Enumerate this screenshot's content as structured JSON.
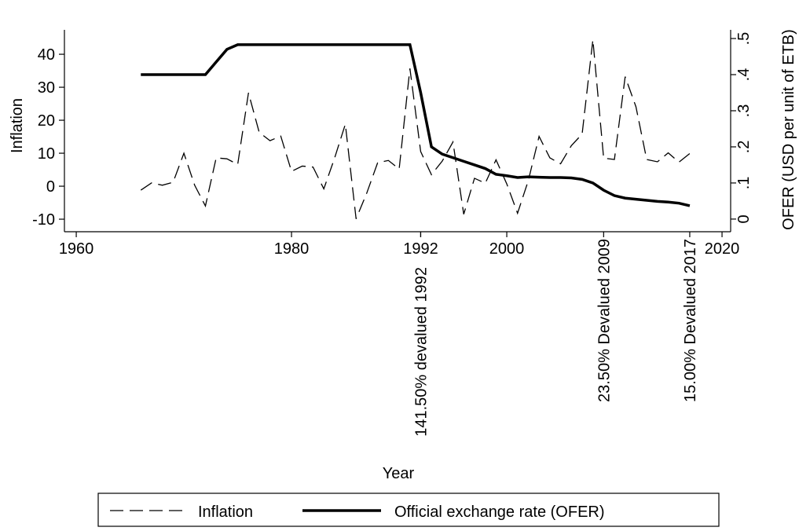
{
  "chart_data": {
    "type": "line",
    "x_label": "Year",
    "y_label": "Inflation",
    "y2_label": "OFER (USD per unit of ETB)",
    "x": [
      1966,
      1967,
      1968,
      1969,
      1970,
      1971,
      1972,
      1973,
      1974,
      1975,
      1976,
      1977,
      1978,
      1979,
      1980,
      1981,
      1982,
      1983,
      1984,
      1985,
      1986,
      1987,
      1988,
      1989,
      1990,
      1991,
      1992,
      1993,
      1994,
      1995,
      1996,
      1997,
      1998,
      1999,
      2000,
      2001,
      2002,
      2003,
      2004,
      2005,
      2006,
      2007,
      2008,
      2009,
      2010,
      2011,
      2012,
      2013,
      2014,
      2015,
      2016,
      2017
    ],
    "series": [
      {
        "name": "Inflation",
        "color": "#000000",
        "dash": true,
        "values": [
          -1.2,
          1.0,
          0.3,
          1.2,
          10.0,
          0.3,
          -6.0,
          8.6,
          8.3,
          6.6,
          28.3,
          16.3,
          13.8,
          15.2,
          4.5,
          6.1,
          5.8,
          -0.8,
          8.5,
          18.8,
          -9.9,
          -2.0,
          7.1,
          7.8,
          5.2,
          35.7,
          10.5,
          3.5,
          7.6,
          13.4,
          -8.5,
          2.4,
          0.9,
          8.0,
          0.7,
          -8.2,
          1.7,
          15.1,
          8.6,
          6.8,
          12.3,
          15.8,
          44.4,
          8.5,
          8.1,
          33.2,
          24.1,
          8.1,
          7.4,
          10.1,
          7.3,
          9.9
        ]
      },
      {
        "name": "Official exchange rate (OFER)",
        "color": "#000000",
        "dash": false,
        "axis": "y2",
        "values": [
          0.4,
          0.4,
          0.4,
          0.4,
          0.4,
          0.4,
          0.4,
          0.435,
          0.47,
          0.483,
          0.483,
          0.483,
          0.483,
          0.483,
          0.483,
          0.483,
          0.483,
          0.483,
          0.483,
          0.483,
          0.483,
          0.483,
          0.483,
          0.483,
          0.483,
          0.483,
          0.35,
          0.2,
          0.18,
          0.17,
          0.16,
          0.15,
          0.14,
          0.124,
          0.12,
          0.115,
          0.117,
          0.116,
          0.115,
          0.115,
          0.114,
          0.11,
          0.1,
          0.08,
          0.065,
          0.058,
          0.055,
          0.052,
          0.049,
          0.047,
          0.044,
          0.037
        ]
      }
    ],
    "xlim": [
      1958.9,
      2020.8
    ],
    "xticks": [
      1960,
      1980,
      1992,
      2000,
      2020
    ],
    "ylim": [
      -13.8,
      47.4
    ],
    "yticks": [
      {
        "value": -10,
        "label": "-10"
      },
      0,
      10,
      20,
      30,
      40
    ],
    "y2lim": [
      -0.035,
      0.524
    ],
    "y2ticks": [
      0,
      {
        "value": 0.1,
        "label": ".1"
      },
      {
        "value": 0.2,
        "label": ".2"
      },
      {
        "value": 0.3,
        "label": ".3"
      },
      {
        "value": 0.4,
        "label": ".4"
      },
      {
        "value": 0.5,
        "label": ".5"
      }
    ],
    "annotations": [
      {
        "x": 1992,
        "text": "141.50% devalued 1992"
      },
      {
        "x": 2009,
        "text": "23.50% Devalued 2009"
      },
      {
        "x": 2017,
        "text": "15.00% Devalued 2017"
      }
    ],
    "legend": "bottom"
  }
}
